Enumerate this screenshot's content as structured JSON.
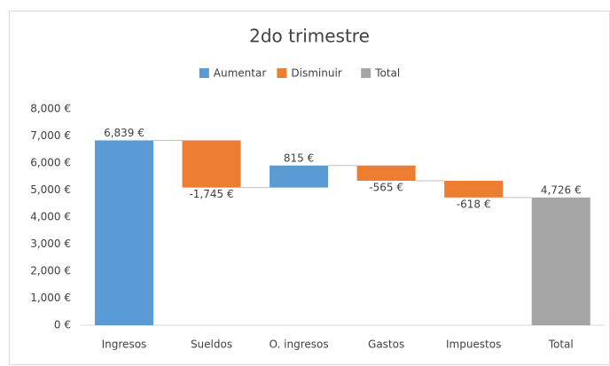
{
  "chart_data": {
    "type": "waterfall",
    "title": "2do trimestre",
    "categories": [
      "Ingresos",
      "Sueldos",
      "O. ingresos",
      "Gastos",
      "Impuestos",
      "Total"
    ],
    "series": [
      {
        "name": "Aumentar",
        "color": "#5b9bd5",
        "values": [
          6839,
          null,
          815,
          null,
          null,
          null
        ],
        "value_labels": [
          "6,839 €",
          null,
          "815 €",
          null,
          null,
          null
        ]
      },
      {
        "name": "Disminuir",
        "color": "#ed7d31",
        "values": [
          null,
          -1745,
          null,
          -565,
          -618,
          null
        ],
        "value_labels": [
          null,
          "-1,745 €",
          null,
          "-565 €",
          "-618 €",
          null
        ]
      },
      {
        "name": "Total",
        "color": "#a5a5a5",
        "values": [
          null,
          null,
          null,
          null,
          null,
          4726
        ],
        "value_labels": [
          null,
          null,
          null,
          null,
          null,
          "4,726 €"
        ]
      }
    ],
    "ylim": [
      0,
      8000
    ],
    "yticks": [
      {
        "value": 0,
        "label": "0 €"
      },
      {
        "value": 1000,
        "label": "1,000 €"
      },
      {
        "value": 2000,
        "label": "2,000 €"
      },
      {
        "value": 3000,
        "label": "3,000 €"
      },
      {
        "value": 4000,
        "label": "4,000 €"
      },
      {
        "value": 5000,
        "label": "5,000 €"
      },
      {
        "value": 6000,
        "label": "6,000 €"
      },
      {
        "value": 7000,
        "label": "7,000 €"
      },
      {
        "value": 8000,
        "label": "8,000 €"
      }
    ],
    "legend": "top"
  }
}
